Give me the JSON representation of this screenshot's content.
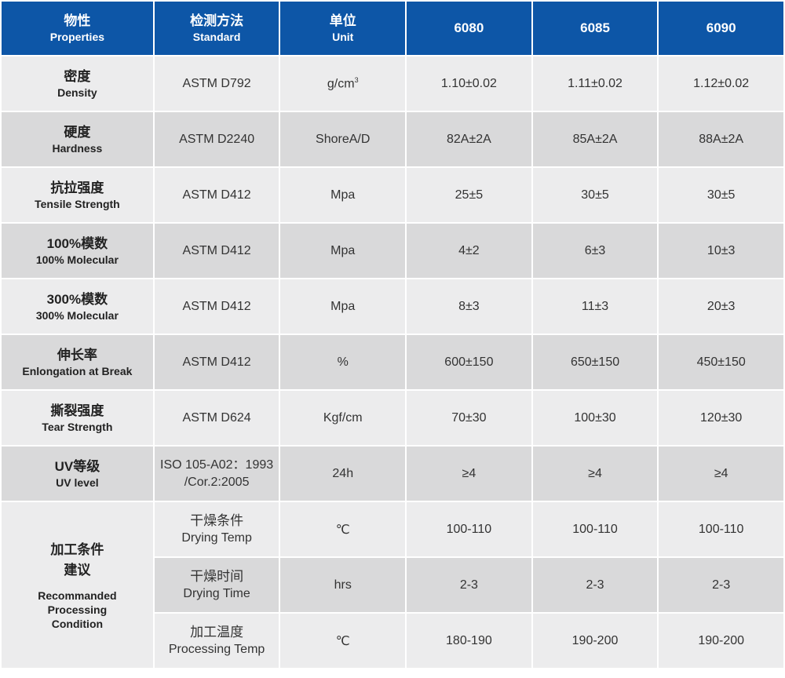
{
  "header": {
    "properties_zh": "物性",
    "properties_en": "Properties",
    "standard_zh": "检测方法",
    "standard_en": "Standard",
    "unit_zh": "单位",
    "unit_en": "Unit",
    "grade_1": "6080",
    "grade_2": "6085",
    "grade_3": "6090"
  },
  "rows": [
    {
      "zh": "密度",
      "en": "Density",
      "standard": "ASTM D792",
      "unit_base": "g/cm",
      "unit_sup": "3",
      "v1": "1.10±0.02",
      "v2": "1.11±0.02",
      "v3": "1.12±0.02"
    },
    {
      "zh": "硬度",
      "en": "Hardness",
      "standard": "ASTM D2240",
      "unit": "ShoreA/D",
      "v1": "82A±2A",
      "v2": "85A±2A",
      "v3": "88A±2A"
    },
    {
      "zh": "抗拉强度",
      "en": "Tensile Strength",
      "standard": "ASTM D412",
      "unit": "Mpa",
      "v1": "25±5",
      "v2": "30±5",
      "v3": "30±5"
    },
    {
      "zh": "100%模数",
      "en": "100% Molecular",
      "standard": "ASTM D412",
      "unit": "Mpa",
      "v1": "4±2",
      "v2": "6±3",
      "v3": "10±3"
    },
    {
      "zh": "300%模数",
      "en": "300% Molecular",
      "standard": "ASTM D412",
      "unit": "Mpa",
      "v1": "8±3",
      "v2": "11±3",
      "v3": "20±3"
    },
    {
      "zh": "伸长率",
      "en": "Enlongation at Break",
      "standard": "ASTM D412",
      "unit": "%",
      "v1": "600±150",
      "v2": "650±150",
      "v3": "450±150"
    },
    {
      "zh": "撕裂强度",
      "en": "Tear Strength",
      "standard": "ASTM D624",
      "unit": "Kgf/cm",
      "v1": "70±30",
      "v2": "100±30",
      "v3": "120±30"
    },
    {
      "zh": "UV等级",
      "en": "UV level",
      "standard_l1": "ISO 105-A02：1993",
      "standard_l2": "/Cor.2:2005",
      "unit": "24h",
      "v1": "≥4",
      "v2": "≥4",
      "v3": "≥4"
    }
  ],
  "processing": {
    "zh_l1": "加工条件",
    "zh_l2": "建议",
    "en_l1": "Recommanded",
    "en_l2": "Processing",
    "en_l3": "Condition",
    "items": [
      {
        "zh": "干燥条件",
        "en": "Drying Temp",
        "unit": "℃",
        "v1": "100-110",
        "v2": "100-110",
        "v3": "100-110"
      },
      {
        "zh": "干燥时间",
        "en": "Drying Time",
        "unit": "hrs",
        "v1": "2-3",
        "v2": "2-3",
        "v3": "2-3"
      },
      {
        "zh": "加工温度",
        "en": "Processing Temp",
        "unit": "℃",
        "v1": "180-190",
        "v2": "190-200",
        "v3": "190-200"
      }
    ]
  }
}
